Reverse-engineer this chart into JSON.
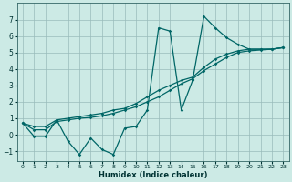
{
  "background_color": "#cceae5",
  "grid_color": "#99bbbb",
  "line_color": "#006666",
  "xlabel": "Humidex (Indice chaleur)",
  "xlim": [
    -0.5,
    23.5
  ],
  "ylim": [
    -1.6,
    8.0
  ],
  "xticks": [
    0,
    1,
    2,
    3,
    4,
    5,
    6,
    7,
    8,
    9,
    10,
    11,
    12,
    13,
    14,
    15,
    16,
    17,
    18,
    19,
    20,
    21,
    22,
    23
  ],
  "yticks": [
    -1,
    0,
    1,
    2,
    3,
    4,
    5,
    6,
    7
  ],
  "line1_x": [
    0,
    1,
    2,
    3,
    4,
    5,
    6,
    7,
    8,
    9,
    10,
    11,
    12,
    13,
    14,
    15,
    16,
    17,
    18,
    19,
    20,
    21,
    22,
    23
  ],
  "line1_y": [
    0.7,
    -0.1,
    -0.1,
    0.9,
    -0.4,
    -1.2,
    -0.2,
    -0.9,
    -1.2,
    0.4,
    0.5,
    1.5,
    6.5,
    6.3,
    1.5,
    3.3,
    7.2,
    6.5,
    5.9,
    5.5,
    5.2,
    5.2,
    5.2,
    5.3
  ],
  "line2_x": [
    0,
    1,
    2,
    3,
    4,
    5,
    6,
    7,
    8,
    9,
    10,
    11,
    12,
    13,
    14,
    15,
    16,
    17,
    18,
    19,
    20,
    21,
    22,
    23
  ],
  "line2_y": [
    0.7,
    0.5,
    0.5,
    0.9,
    1.0,
    1.1,
    1.2,
    1.3,
    1.5,
    1.6,
    1.9,
    2.3,
    2.7,
    3.0,
    3.3,
    3.5,
    4.1,
    4.6,
    4.9,
    5.1,
    5.2,
    5.2,
    5.2,
    5.3
  ],
  "line3_x": [
    0,
    1,
    2,
    3,
    4,
    5,
    6,
    7,
    8,
    9,
    10,
    11,
    12,
    13,
    14,
    15,
    16,
    17,
    18,
    19,
    20,
    21,
    22,
    23
  ],
  "line3_y": [
    0.7,
    0.3,
    0.3,
    0.8,
    0.9,
    1.0,
    1.05,
    1.15,
    1.3,
    1.5,
    1.7,
    2.0,
    2.3,
    2.7,
    3.1,
    3.4,
    3.9,
    4.3,
    4.7,
    5.0,
    5.1,
    5.15,
    5.2,
    5.3
  ]
}
